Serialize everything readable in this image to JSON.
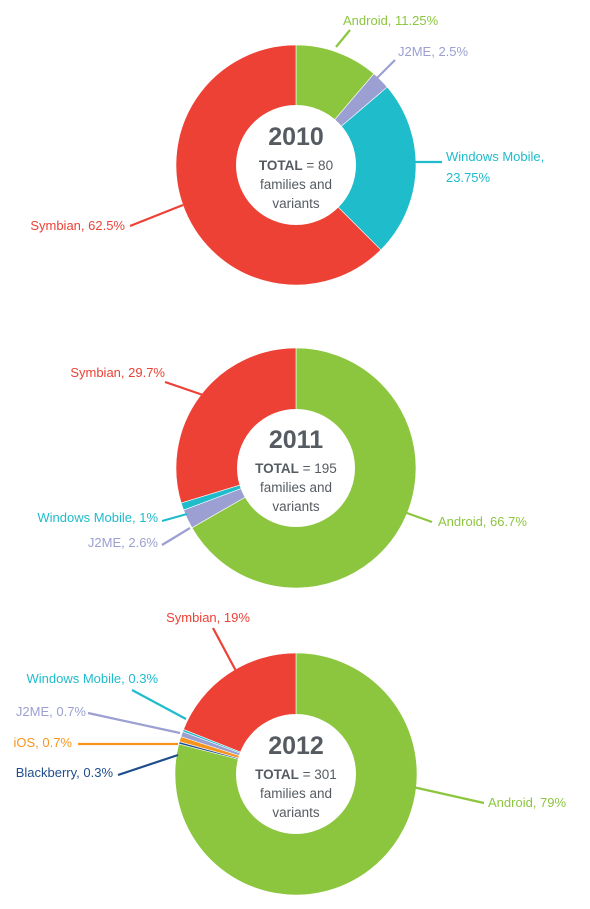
{
  "chart_data": [
    {
      "type": "pie",
      "year": "2010",
      "total_label": "TOTAL",
      "total_suffix": "= 80",
      "total_line2": "families and",
      "total_line3": "variants",
      "slices": [
        {
          "name": "Android",
          "value": 11.25,
          "label": "Android, 11.25%",
          "color": "#8cc63f"
        },
        {
          "name": "J2ME",
          "value": 2.5,
          "label": "J2ME, 2.5%",
          "color": "#9b9fd1"
        },
        {
          "name": "Windows Mobile",
          "value": 23.75,
          "label": "Windows Mobile, 23.75%",
          "color": "#1fbccc"
        },
        {
          "name": "Symbian",
          "value": 62.5,
          "label": "Symbian, 62.5%",
          "color": "#ee4136"
        }
      ]
    },
    {
      "type": "pie",
      "year": "2011",
      "total_label": "TOTAL",
      "total_suffix": "= 195",
      "total_line2": "families and",
      "total_line3": "variants",
      "slices": [
        {
          "name": "Android",
          "value": 66.7,
          "label": "Android, 66.7%",
          "color": "#8cc63f"
        },
        {
          "name": "J2ME",
          "value": 2.6,
          "label": "J2ME, 2.6%",
          "color": "#9b9fd1"
        },
        {
          "name": "Windows Mobile",
          "value": 1,
          "label": "Windows Mobile, 1%",
          "color": "#1fbccc"
        },
        {
          "name": "Symbian",
          "value": 29.7,
          "label": "Symbian, 29.7%",
          "color": "#ee4136"
        }
      ]
    },
    {
      "type": "pie",
      "year": "2012",
      "total_label": "TOTAL",
      "total_suffix": "= 301",
      "total_line2": "families and",
      "total_line3": "variants",
      "slices": [
        {
          "name": "Android",
          "value": 79,
          "label": "Android, 79%",
          "color": "#8cc63f"
        },
        {
          "name": "Blackberry",
          "value": 0.3,
          "label": "Blackberry, 0.3%",
          "color": "#1f4e8c"
        },
        {
          "name": "iOS",
          "value": 0.7,
          "label": "iOS, 0.7%",
          "color": "#f7941d"
        },
        {
          "name": "J2ME",
          "value": 0.7,
          "label": "J2ME, 0.7%",
          "color": "#9b9fd1"
        },
        {
          "name": "Windows Mobile",
          "value": 0.3,
          "label": "Windows Mobile, 0.3%",
          "color": "#1fbccc"
        },
        {
          "name": "Symbian",
          "value": 19,
          "label": "Symbian, 19%",
          "color": "#ee4136"
        }
      ]
    }
  ]
}
